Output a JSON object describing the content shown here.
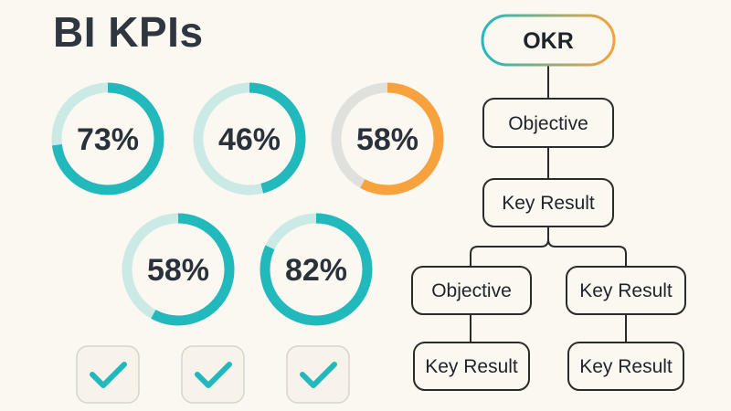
{
  "title": "BI KPIs",
  "colors": {
    "teal": "#22b9bd",
    "orange": "#f7a23c",
    "track": "#e0e0dd",
    "check_bg": "#f7f3ea",
    "node_border": "#2b2b2b"
  },
  "gauges": [
    {
      "label": "73%",
      "value": 73,
      "color": "teal"
    },
    {
      "label": "46%",
      "value": 46,
      "color": "teal"
    },
    {
      "label": "58%",
      "value": 58,
      "color": "orange"
    },
    {
      "label": "58%",
      "value": 58,
      "color": "teal"
    },
    {
      "label": "82%",
      "value": 82,
      "color": "teal"
    }
  ],
  "checkboxes": [
    {
      "checked": true,
      "icon": "check-icon"
    },
    {
      "checked": true,
      "icon": "check-icon"
    },
    {
      "checked": true,
      "icon": "check-icon"
    }
  ],
  "tree": {
    "root": "OKR",
    "level1": "Objective",
    "level2": "Key Result",
    "left_branch": {
      "objective": "Objective",
      "key_result": "Key Result"
    },
    "right_branch": {
      "key_result": "Key Result",
      "key_result_child": "Key Result"
    }
  }
}
